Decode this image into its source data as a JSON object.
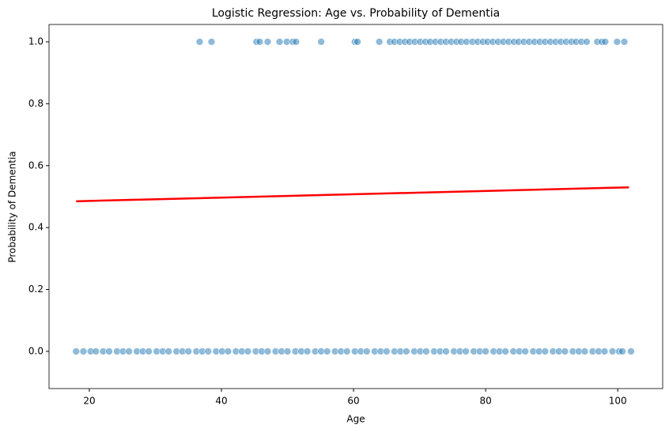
{
  "chart_data": {
    "type": "scatter",
    "title": "Logistic Regression: Age vs. Probability of Dementia",
    "xlabel": "Age",
    "ylabel": "Probability of Dementia",
    "xlim": [
      13.9,
      106.8
    ],
    "xticks": [
      20,
      40,
      60,
      80,
      100
    ],
    "ylim": [
      -0.12,
      1.056
    ],
    "yticks": [
      {
        "value": 0,
        "label": "0.0"
      },
      {
        "value": 0.2,
        "label": "0.2"
      },
      {
        "value": 0.4,
        "label": "0.4"
      },
      {
        "value": 0.6,
        "label": "0.6"
      },
      {
        "value": 0.8,
        "label": "0.8"
      },
      {
        "value": 1,
        "label": "1.0"
      }
    ],
    "series": [
      {
        "type": "scatter",
        "color": "#1f77b4",
        "x": [
          36.7,
          38.5,
          45.3,
          45.8,
          47.0,
          48.8,
          49.9,
          50.8,
          51.3,
          55.1,
          60.2,
          60.6,
          63.9,
          65.5,
          66.2,
          67.0,
          67.8,
          68.5,
          69.3,
          70.1,
          70.9,
          71.6,
          72.4,
          73.2,
          74.0,
          74.8,
          75.6,
          76.3,
          77.1,
          78.0,
          78.8,
          79.6,
          80.3,
          81.1,
          81.9,
          82.7,
          83.5,
          84.3,
          85.0,
          85.8,
          86.6,
          87.4,
          88.2,
          89.0,
          89.8,
          90.6,
          91.4,
          92.2,
          93.0,
          93.7,
          94.5,
          95.3,
          96.9,
          97.6,
          98.1,
          99.9,
          101.0
        ],
        "values": [
          1,
          1,
          1,
          1,
          1,
          1,
          1,
          1,
          1,
          1,
          1,
          1,
          1,
          1,
          1,
          1,
          1,
          1,
          1,
          1,
          1,
          1,
          1,
          1,
          1,
          1,
          1,
          1,
          1,
          1,
          1,
          1,
          1,
          1,
          1,
          1,
          1,
          1,
          1,
          1,
          1,
          1,
          1,
          1,
          1,
          1,
          1,
          1,
          1,
          1,
          1,
          1,
          1,
          1,
          1,
          1,
          1
        ]
      },
      {
        "type": "scatter",
        "color": "#1f77b4",
        "x": [
          18.0,
          19.1,
          20.2,
          21.0,
          22.1,
          23.0,
          24.2,
          25.1,
          26.0,
          27.2,
          28.1,
          29.0,
          30.2,
          31.1,
          32.0,
          33.2,
          34.1,
          35.0,
          36.2,
          37.1,
          38.0,
          39.2,
          40.1,
          41.0,
          42.2,
          43.1,
          44.0,
          45.2,
          46.1,
          47.0,
          48.2,
          49.1,
          50.0,
          51.2,
          52.1,
          53.0,
          54.2,
          55.1,
          56.0,
          57.2,
          58.1,
          59.0,
          60.2,
          61.1,
          62.0,
          63.2,
          64.1,
          65.0,
          66.2,
          67.1,
          68.0,
          69.2,
          70.1,
          71.0,
          72.2,
          73.1,
          74.0,
          75.2,
          76.1,
          77.0,
          78.2,
          79.1,
          80.0,
          81.2,
          82.1,
          83.0,
          84.2,
          85.1,
          86.0,
          87.2,
          88.1,
          89.0,
          90.2,
          91.1,
          92.0,
          93.2,
          94.1,
          95.0,
          96.2,
          97.1,
          98.0,
          99.2,
          100.2,
          100.7,
          102.0
        ],
        "values": [
          0,
          0,
          0,
          0,
          0,
          0,
          0,
          0,
          0,
          0,
          0,
          0,
          0,
          0,
          0,
          0,
          0,
          0,
          0,
          0,
          0,
          0,
          0,
          0,
          0,
          0,
          0,
          0,
          0,
          0,
          0,
          0,
          0,
          0,
          0,
          0,
          0,
          0,
          0,
          0,
          0,
          0,
          0,
          0,
          0,
          0,
          0,
          0,
          0,
          0,
          0,
          0,
          0,
          0,
          0,
          0,
          0,
          0,
          0,
          0,
          0,
          0,
          0,
          0,
          0,
          0,
          0,
          0,
          0,
          0,
          0,
          0,
          0,
          0,
          0,
          0,
          0,
          0,
          0,
          0,
          0,
          0,
          0,
          0,
          0
        ]
      },
      {
        "type": "line",
        "color": "#ff0000",
        "x": [
          18.0,
          101.7
        ],
        "values": [
          0.485,
          0.53
        ]
      }
    ]
  }
}
